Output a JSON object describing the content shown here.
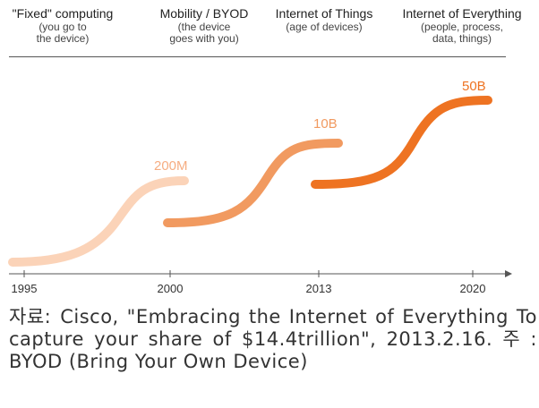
{
  "eras": [
    {
      "title": "\"Fixed\" computing",
      "subtitle": "(you go to\nthe device)"
    },
    {
      "title": "Mobility / BYOD",
      "subtitle": "(the device\ngoes with you)"
    },
    {
      "title": "Internet of Things",
      "subtitle": "(age of devices)"
    },
    {
      "title": "Internet of Everything",
      "subtitle": "(people, process,\ndata, things)"
    }
  ],
  "timeline": {
    "years": [
      "1995",
      "2000",
      "2013",
      "2020"
    ]
  },
  "waves": [
    {
      "label": "",
      "color": "#fbd3b8"
    },
    {
      "label": "200M",
      "color": "#f6ad82"
    },
    {
      "label": "10B",
      "color": "#f19a60"
    },
    {
      "label": "50B",
      "color": "#ee7322"
    }
  ],
  "source": {
    "label": "자료:",
    "text": "Cisco, \"Embracing the Internet of Everything To capture your share of $14.4trillion\", 2013.2.16. 주 : BYOD (Bring Your Own Device)"
  }
}
